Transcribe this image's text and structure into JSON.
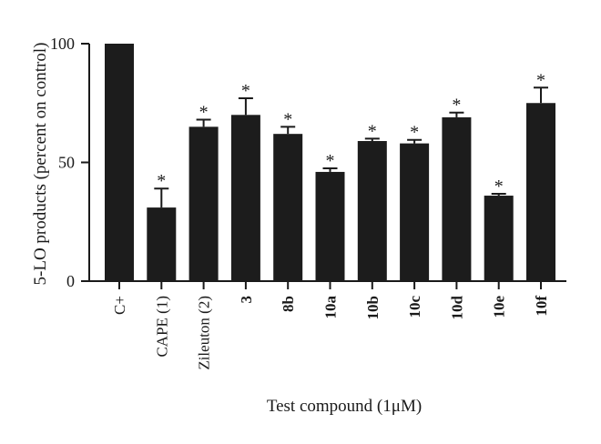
{
  "chart_data": {
    "type": "bar",
    "title": "",
    "xlabel": "Test compound (1μM)",
    "ylabel": "5-LO products (percent on control)",
    "ylim": [
      0,
      100
    ],
    "yticks": [
      "0",
      "50",
      "100"
    ],
    "categories": [
      "C+",
      "CAPE (1)",
      "Zileuton (2)",
      "3",
      "8b",
      "10a",
      "10b",
      "10c",
      "10d",
      "10e",
      "10f"
    ],
    "bold_categories": [
      "3",
      "8b",
      "10a",
      "10b",
      "10c",
      "10d",
      "10e",
      "10f"
    ],
    "values": [
      100,
      31,
      65,
      70,
      62,
      46,
      59,
      58,
      69,
      36,
      75
    ],
    "errors": [
      0,
      8,
      3,
      7,
      3,
      1.5,
      1,
      1.5,
      2,
      0.8,
      6.5
    ],
    "significance": [
      "",
      "*",
      "*",
      "*",
      "*",
      "*",
      "*",
      "*",
      "*",
      "*",
      "*"
    ],
    "bar_color": "#1c1c1c",
    "grid": false,
    "legend": "none"
  }
}
